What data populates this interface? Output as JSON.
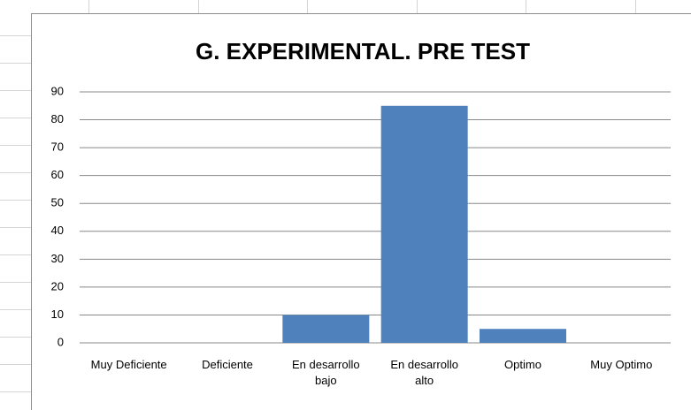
{
  "chart_data": {
    "type": "bar",
    "title": "G. EXPERIMENTAL. PRE TEST",
    "categories": [
      "Muy Deficiente",
      "Deficiente",
      "En desarrollo bajo",
      "En desarrollo alto",
      "Optimo",
      "Muy Optimo"
    ],
    "values": [
      0,
      0,
      10,
      85,
      5,
      0
    ],
    "color": "#4f81bd",
    "ylim": [
      0,
      90
    ],
    "yticks": [
      0,
      10,
      20,
      30,
      40,
      50,
      60,
      70,
      80,
      90
    ],
    "grid": true
  }
}
